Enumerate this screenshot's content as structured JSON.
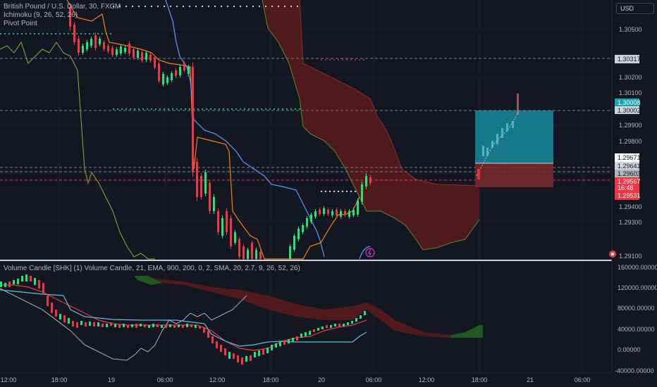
{
  "main_legend": {
    "symbol": "British Pound / U.S. Dollar, 30, FXCM",
    "ichimoku": "Ichimoku (9, 26, 52, 26)",
    "pivot": "Pivot Point"
  },
  "lower_legend": "Volume Candle [SHK] (1) Volume Candle, 21, EMA, 900, 200, 0, 2, SMA, 20, 2.7, 9, 26, 52, 26)",
  "currency": "USD",
  "price_axis": [
    "1.30500",
    "1.30200",
    "1.30100",
    "1.29900",
    "1.29800",
    "1.29400",
    "1.29300",
    "1.29100"
  ],
  "price_badges": {
    "p1": "1.30317",
    "p2": "1.30008",
    "p3": "1.30002",
    "p4": "1.29671",
    "p5": "1.29641",
    "p6": "1.29603",
    "current_price": "1.29567",
    "countdown": "16:48",
    "p7": "1.29531"
  },
  "volume_axis": [
    "160000.00000",
    "120000.00000",
    "80000.00000",
    "40000.00000",
    "0.00000",
    "-40000.00000"
  ],
  "time_axis": [
    "12:00",
    "18:00",
    "19",
    "06:00",
    "12:00",
    "18:00",
    "20",
    "06:00",
    "12:00",
    "18:00",
    "21",
    "06:00"
  ],
  "colors": {
    "up": "#26e07a",
    "down": "#f23645",
    "cloud_red": "#5c1a1a",
    "cloud_green": "#1e5a20",
    "tenkan": "#f57f17",
    "kijun": "#5b9cf6",
    "chikou": "#a3a33a",
    "target": "#1aa3b5"
  }
}
